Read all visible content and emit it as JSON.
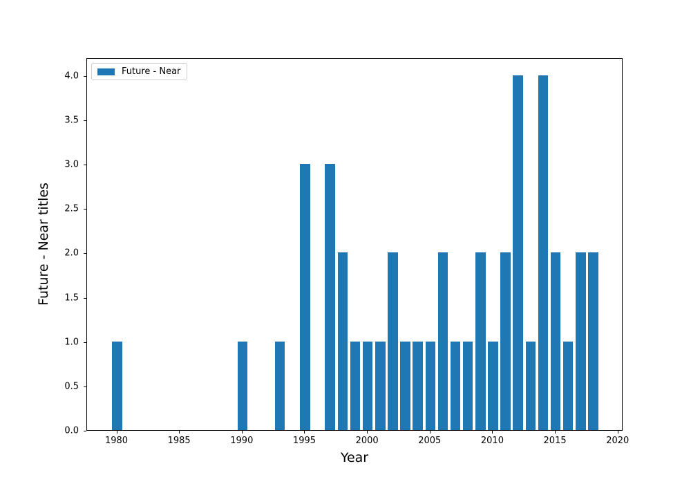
{
  "chart_data": {
    "type": "bar",
    "title": "",
    "xlabel": "Year",
    "ylabel": "Future - Near titles",
    "legend_label": "Future - Near",
    "legend_position": "upper left",
    "bar_color": "#1f77b4",
    "spine_color": "#000000",
    "background_color": "#ffffff",
    "grid": false,
    "xlim": [
      1977.6,
      2020.4
    ],
    "ylim": [
      0,
      4.2
    ],
    "bar_width_years": 0.8,
    "xticks": [
      1980,
      1985,
      1990,
      1995,
      2000,
      2005,
      2010,
      2015,
      2020
    ],
    "yticks": [
      0.0,
      0.5,
      1.0,
      1.5,
      2.0,
      2.5,
      3.0,
      3.5,
      4.0
    ],
    "ytick_labels": [
      "0.0",
      "0.5",
      "1.0",
      "1.5",
      "2.0",
      "2.5",
      "3.0",
      "3.5",
      "4.0"
    ],
    "categories": [
      1980,
      1981,
      1982,
      1983,
      1984,
      1985,
      1986,
      1987,
      1988,
      1989,
      1990,
      1991,
      1992,
      1993,
      1994,
      1995,
      1996,
      1997,
      1998,
      1999,
      2000,
      2001,
      2002,
      2003,
      2004,
      2005,
      2006,
      2007,
      2008,
      2009,
      2010,
      2011,
      2012,
      2013,
      2014,
      2015,
      2016,
      2017,
      2018
    ],
    "values": [
      1,
      0,
      0,
      0,
      0,
      0,
      0,
      0,
      0,
      0,
      1,
      0,
      0,
      1,
      0,
      3,
      0,
      3,
      2,
      1,
      1,
      1,
      2,
      1,
      1,
      1,
      2,
      1,
      1,
      2,
      1,
      2,
      4,
      1,
      4,
      2,
      1,
      2,
      2
    ]
  }
}
